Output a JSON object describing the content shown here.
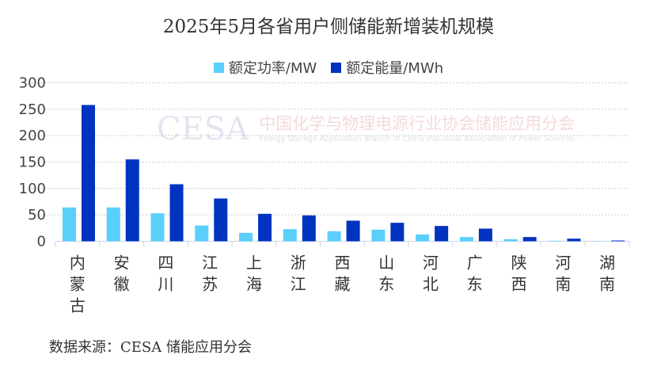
{
  "chart_data": {
    "type": "bar",
    "title": "2025年5月各省用户侧储能新增装机规模",
    "categories": [
      "内蒙古",
      "安徽",
      "四川",
      "江苏",
      "上海",
      "浙江",
      "西藏",
      "山东",
      "河北",
      "广东",
      "陕西",
      "河南",
      "湖南"
    ],
    "series": [
      {
        "name": "额定功率/MW",
        "color": "#5BCFFB",
        "values": [
          64,
          64,
          53,
          30,
          16,
          23,
          19,
          22,
          13,
          8,
          4,
          1,
          0.3
        ]
      },
      {
        "name": "额定能量/MWh",
        "color": "#0033C0",
        "values": [
          258,
          155,
          108,
          81,
          52,
          49,
          39,
          35,
          29,
          24,
          8,
          5,
          1.5
        ]
      }
    ],
    "ylim": [
      0,
      300
    ],
    "yticks": [
      "0",
      "50",
      "100",
      "150",
      "200",
      "250",
      "300"
    ],
    "grid": true,
    "legend": "top",
    "watermark": {
      "logo": "CESA",
      "cn": "中国化学与物理电源行业协会储能应用分会",
      "en": "Energy Storage Application Branch of China Industrial Association of Power Sources"
    },
    "source": "数据来源：CESA 储能应用分会"
  }
}
